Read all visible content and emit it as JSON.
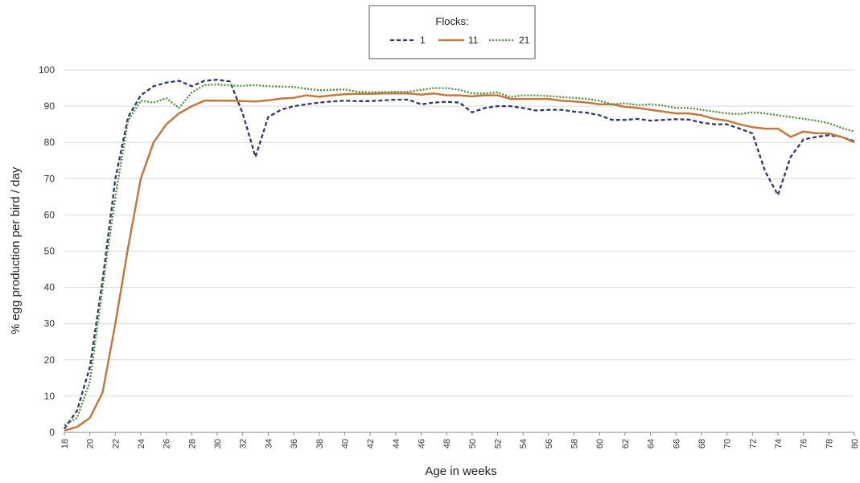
{
  "chart_data": {
    "type": "line",
    "title": "",
    "xlabel": "Age in weeks",
    "ylabel": "% egg production  per bird / day",
    "xlim": [
      18,
      80
    ],
    "ylim": [
      0,
      100
    ],
    "x_ticks": [
      "18",
      "20",
      "22",
      "24",
      "26",
      "28",
      "30",
      "32",
      "34",
      "36",
      "38",
      "40",
      "42",
      "44",
      "46",
      "48",
      "50",
      "52",
      "54",
      "56",
      "58",
      "60",
      "62",
      "64",
      "66",
      "68",
      "70",
      "72",
      "74",
      "76",
      "78",
      "80"
    ],
    "y_ticks": [
      "0",
      "10",
      "20",
      "30",
      "40",
      "50",
      "60",
      "70",
      "80",
      "90",
      "100"
    ],
    "grid": "horizontal",
    "legend": {
      "title": "Flocks:",
      "position": "top-center"
    },
    "x": [
      18,
      19,
      20,
      21,
      22,
      23,
      24,
      25,
      26,
      27,
      28,
      29,
      30,
      31,
      32,
      33,
      34,
      35,
      36,
      37,
      38,
      39,
      40,
      41,
      42,
      43,
      44,
      45,
      46,
      47,
      48,
      49,
      50,
      51,
      52,
      53,
      54,
      55,
      56,
      57,
      58,
      59,
      60,
      61,
      62,
      63,
      64,
      65,
      66,
      67,
      68,
      69,
      70,
      71,
      72,
      73,
      74,
      75,
      76,
      77,
      78,
      79,
      80
    ],
    "series": [
      {
        "name": "1",
        "color": "#2f3a6b",
        "style": "dashed",
        "values": [
          1,
          6,
          18,
          42,
          70,
          87,
          93,
          95.5,
          96.5,
          97,
          95.5,
          97,
          97.3,
          96.8,
          88,
          76,
          87,
          89,
          90,
          90.5,
          91,
          91.3,
          91.5,
          91.4,
          91.4,
          91.6,
          91.8,
          91.8,
          90.5,
          91,
          91.2,
          91,
          88.3,
          89.5,
          90,
          90,
          89.5,
          88.8,
          89,
          89,
          88.5,
          88.2,
          87.5,
          86.2,
          86.2,
          86.5,
          86,
          86.2,
          86.4,
          86.3,
          85.5,
          85,
          85,
          83.8,
          82.5,
          72,
          65.5,
          76,
          80.8,
          81.5,
          82,
          81.5,
          80.3
        ]
      },
      {
        "name": "11",
        "color": "#c07a3e",
        "style": "solid",
        "values": [
          0.5,
          1.5,
          4,
          11,
          30,
          51,
          70,
          80,
          85,
          88,
          90,
          91.5,
          91.5,
          91.5,
          91.4,
          91.3,
          91.6,
          92.1,
          92.3,
          93,
          92.6,
          93,
          93.3,
          93.4,
          93.4,
          93.5,
          93.5,
          93.5,
          93.2,
          93.5,
          93,
          93,
          92.7,
          93,
          93,
          92,
          92,
          92,
          92,
          91.5,
          91.3,
          91,
          90.5,
          90.5,
          89.8,
          89.5,
          89,
          88.5,
          88,
          88,
          87.5,
          86.5,
          86,
          85,
          84.2,
          83.8,
          83.8,
          81.5,
          83,
          82.5,
          82.5,
          81.5,
          80
        ]
      },
      {
        "name": "21",
        "color": "#4e8a3a",
        "style": "dotted",
        "values": [
          2,
          4,
          14,
          40,
          65,
          86,
          91.5,
          91,
          92.2,
          89.5,
          93.8,
          95.8,
          96,
          95.7,
          95.6,
          95.8,
          95.5,
          95.4,
          95.3,
          94.8,
          94.4,
          94.5,
          94.6,
          94,
          93.8,
          93.9,
          94,
          94,
          94.5,
          95,
          95,
          94.5,
          93.5,
          93.5,
          93.8,
          92.5,
          93,
          93,
          92.8,
          92.5,
          92.3,
          92,
          91.5,
          90.5,
          90.8,
          90.3,
          90.5,
          90.2,
          89.5,
          89.5,
          89,
          88.5,
          88,
          87.8,
          88.3,
          88,
          87.5,
          87,
          86.5,
          86,
          85.3,
          84,
          83
        ]
      }
    ]
  }
}
